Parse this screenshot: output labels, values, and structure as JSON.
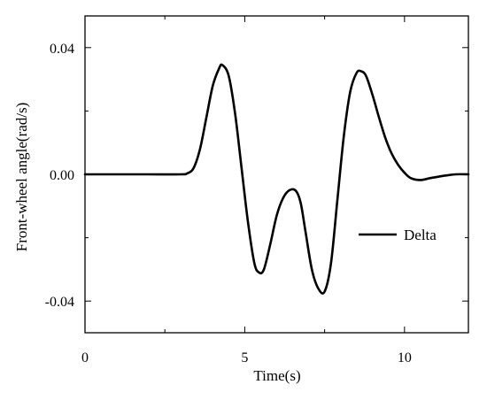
{
  "chart_data": {
    "type": "line",
    "title": "",
    "xlabel": "Time(s)",
    "ylabel": "Front-wheel angle(rad/s)",
    "xlim": [
      0,
      12
    ],
    "ylim": [
      -0.05,
      0.05
    ],
    "xticks": [
      0,
      5,
      10
    ],
    "xtick_labels": [
      "0",
      "5",
      "10"
    ],
    "x_minor_ticks": [
      2.5,
      7.5
    ],
    "yticks": [
      -0.04,
      0.0,
      0.04
    ],
    "ytick_labels": [
      "-0.04",
      "0.00",
      "0.04"
    ],
    "y_minor_ticks": [
      -0.02,
      0.02
    ],
    "grid": false,
    "legend_position": "right",
    "series": [
      {
        "name": "Delta",
        "color": "#000000",
        "x": [
          0,
          1,
          2,
          3,
          3.2,
          3.4,
          3.6,
          3.8,
          4.0,
          4.2,
          4.3,
          4.5,
          4.7,
          4.9,
          5.1,
          5.3,
          5.45,
          5.6,
          5.8,
          6.0,
          6.2,
          6.4,
          6.6,
          6.75,
          6.9,
          7.1,
          7.3,
          7.5,
          7.7,
          7.9,
          8.1,
          8.3,
          8.5,
          8.65,
          8.8,
          9.0,
          9.2,
          9.4,
          9.6,
          9.8,
          10.0,
          10.2,
          10.5,
          10.8,
          11.2,
          11.6,
          12.0
        ],
        "y": [
          0,
          0,
          0,
          0,
          0.0003,
          0.002,
          0.008,
          0.018,
          0.028,
          0.0335,
          0.0345,
          0.031,
          0.019,
          0.002,
          -0.015,
          -0.028,
          -0.031,
          -0.03,
          -0.022,
          -0.013,
          -0.0075,
          -0.005,
          -0.0052,
          -0.009,
          -0.018,
          -0.03,
          -0.036,
          -0.037,
          -0.028,
          -0.008,
          0.012,
          0.026,
          0.032,
          0.0325,
          0.031,
          0.025,
          0.018,
          0.0115,
          0.0065,
          0.003,
          0.0005,
          -0.0012,
          -0.0018,
          -0.0012,
          -0.0005,
          0,
          0
        ]
      }
    ]
  }
}
